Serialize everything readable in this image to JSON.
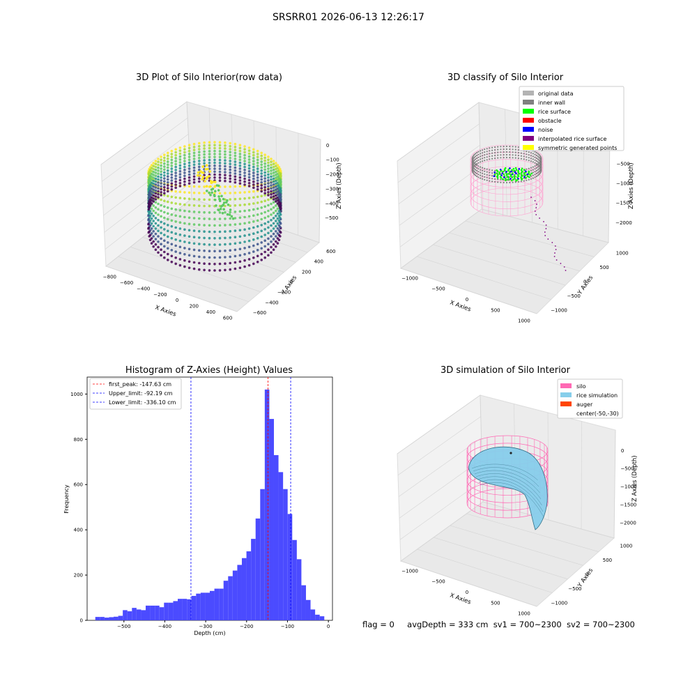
{
  "figure": {
    "title": "SRSRR01 2026-06-13 12:26:17"
  },
  "colors": {
    "axes_pane": "#f2f2f2",
    "axes_pane_dark": "#e6e6e6",
    "grid": "#d0d0d0",
    "histogram_bar": "#4b4bff",
    "first_peak_line": "#ff0000",
    "limit_line": "#0000ff"
  },
  "chart_data": [
    {
      "type": "scatter",
      "title": "3D Plot of Silo Interior(row data)",
      "xlabel": "X Axies",
      "ylabel": "Y Axies",
      "zlabel": "Z Axies (Depth)",
      "x_ticks": [
        "−800",
        "−600",
        "−400",
        "−200",
        "0",
        "200",
        "400",
        "600"
      ],
      "y_ticks": [
        "−600",
        "−400",
        "−200",
        "0",
        "200",
        "400",
        "600"
      ],
      "z_ticks": [
        "0",
        "−100",
        "−200",
        "−300",
        "−400",
        "−500"
      ],
      "xlim": [
        -800,
        600
      ],
      "ylim": [
        -600,
        600
      ],
      "zlim": [
        -550,
        0
      ],
      "colormap": "viridis"
    },
    {
      "type": "scatter",
      "title": "3D classify of Silo Interior",
      "xlabel": "X Axies",
      "ylabel": "Y Axies",
      "zlabel": "Z Axies (Depth)",
      "x_ticks": [
        "−1000",
        "−500",
        "0",
        "500",
        "1000"
      ],
      "y_ticks": [
        "−1000",
        "−500",
        "0",
        "500",
        "1000"
      ],
      "z_ticks": [
        "0",
        "−500",
        "−1000",
        "−1500",
        "−2000"
      ],
      "legend_placement": "top-right",
      "legend": [
        {
          "label": "original data",
          "color": "#b3b3b3"
        },
        {
          "label": "inner wall",
          "color": "#808080"
        },
        {
          "label": "rice surface",
          "color": "#00ff00"
        },
        {
          "label": "obstacle",
          "color": "#ff0000"
        },
        {
          "label": "noise",
          "color": "#0000ff"
        },
        {
          "label": "interpolated rice surface",
          "color": "#800080"
        },
        {
          "label": "symmetric generated points",
          "color": "#ffff00"
        }
      ]
    },
    {
      "type": "bar",
      "title": "Histogram of Z-Axies (Height) Values",
      "xlabel": "Depth (cm)",
      "ylabel": "Frequency",
      "xlim": [
        -590,
        10
      ],
      "ylim": [
        0,
        1075
      ],
      "x_ticks": [
        -500,
        -400,
        -300,
        -200,
        -100,
        0
      ],
      "x_tick_labels": [
        "−500",
        "−400",
        "−300",
        "−200",
        "−100",
        "0"
      ],
      "y_ticks": [
        0,
        200,
        400,
        600,
        800,
        1000
      ],
      "bins": {
        "start": -570,
        "width": 11.2,
        "counts": [
          15,
          15,
          12,
          14,
          16,
          20,
          45,
          40,
          55,
          48,
          45,
          65,
          65,
          65,
          58,
          78,
          78,
          85,
          95,
          95,
          93,
          108,
          118,
          122,
          122,
          130,
          140,
          140,
          175,
          195,
          220,
          245,
          275,
          305,
          360,
          450,
          580,
          1020,
          890,
          730,
          655,
          580,
          470,
          355,
          270,
          155,
          90,
          48,
          25,
          18
        ]
      },
      "vlines": [
        {
          "name": "first_peak: -147.63 cm",
          "value": -147.63,
          "color": "#ff0000"
        },
        {
          "name": "Upper_limit: -92.19 cm",
          "value": -92.19,
          "color": "#0000ff"
        },
        {
          "name": "Lower_limit: -336.10 cm",
          "value": -336.1,
          "color": "#0000ff"
        }
      ],
      "legend_placement": "top-left"
    },
    {
      "type": "surface",
      "title": "3D simulation of Silo Interior",
      "xlabel": "X Axies",
      "ylabel": "Y Axies",
      "zlabel": "Z Axies (Depth)",
      "x_ticks": [
        "−1000",
        "−500",
        "0",
        "500",
        "1000"
      ],
      "y_ticks": [
        "−1000",
        "−500",
        "0",
        "500",
        "1000"
      ],
      "z_ticks": [
        "0",
        "−500",
        "−1000",
        "−1500",
        "−2000"
      ],
      "legend_placement": "top-right",
      "legend": [
        {
          "label": "silo",
          "color": "#ff69b4"
        },
        {
          "label": "rice simulation",
          "color": "#87ceeb"
        },
        {
          "label": "auger",
          "color": "#ff4500"
        },
        {
          "label": "center(-50,-30)",
          "color": ""
        }
      ]
    }
  ],
  "status": {
    "flag": "flag = 0",
    "avg_depth": "avgDepth = 333 cm",
    "sv1": "sv1 = 700~2300",
    "sv2": "sv2 = 700~2300"
  }
}
